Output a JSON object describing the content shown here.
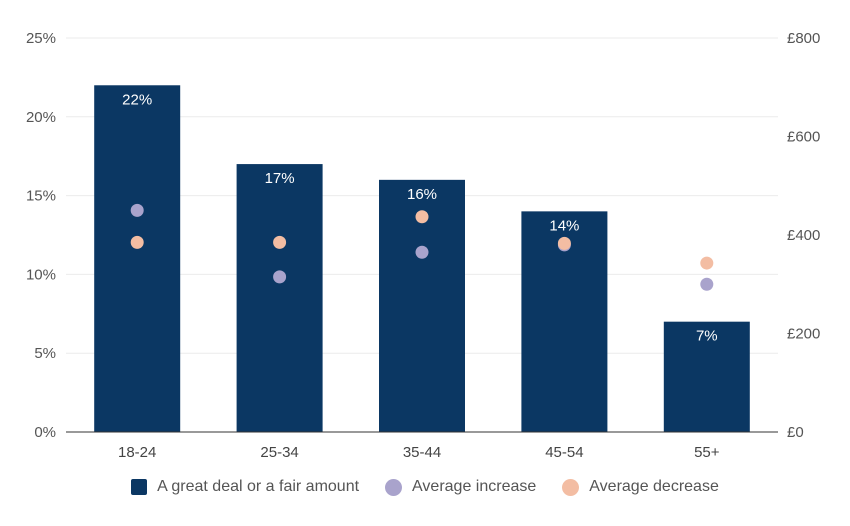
{
  "chart_data": {
    "type": "bar",
    "categories": [
      "18-24",
      "25-34",
      "35-44",
      "45-54",
      "55+"
    ],
    "y_left": {
      "ticks": [
        "0%",
        "5%",
        "10%",
        "15%",
        "20%",
        "25%"
      ],
      "range": [
        0,
        25
      ],
      "unit": "%"
    },
    "y_right": {
      "ticks": [
        "£0",
        "£200",
        "£400",
        "£600",
        "£800"
      ],
      "range": [
        0,
        800
      ],
      "unit": "£"
    },
    "grid": true,
    "legend_position": "bottom",
    "series": [
      {
        "name": "A great deal or a fair amount",
        "type": "bar",
        "axis": "left",
        "color": "#0b3763",
        "values": [
          22,
          17,
          16,
          14,
          7
        ],
        "labels": [
          "22%",
          "17%",
          "16%",
          "14%",
          "7%"
        ]
      },
      {
        "name": "Average increase",
        "type": "scatter",
        "axis": "right",
        "color": "#a9a3cc",
        "values": [
          450,
          315,
          365,
          380,
          300
        ]
      },
      {
        "name": "Average decrease",
        "type": "scatter",
        "axis": "right",
        "color": "#f3bda3",
        "values": [
          385,
          385,
          437,
          383,
          343
        ]
      }
    ]
  }
}
